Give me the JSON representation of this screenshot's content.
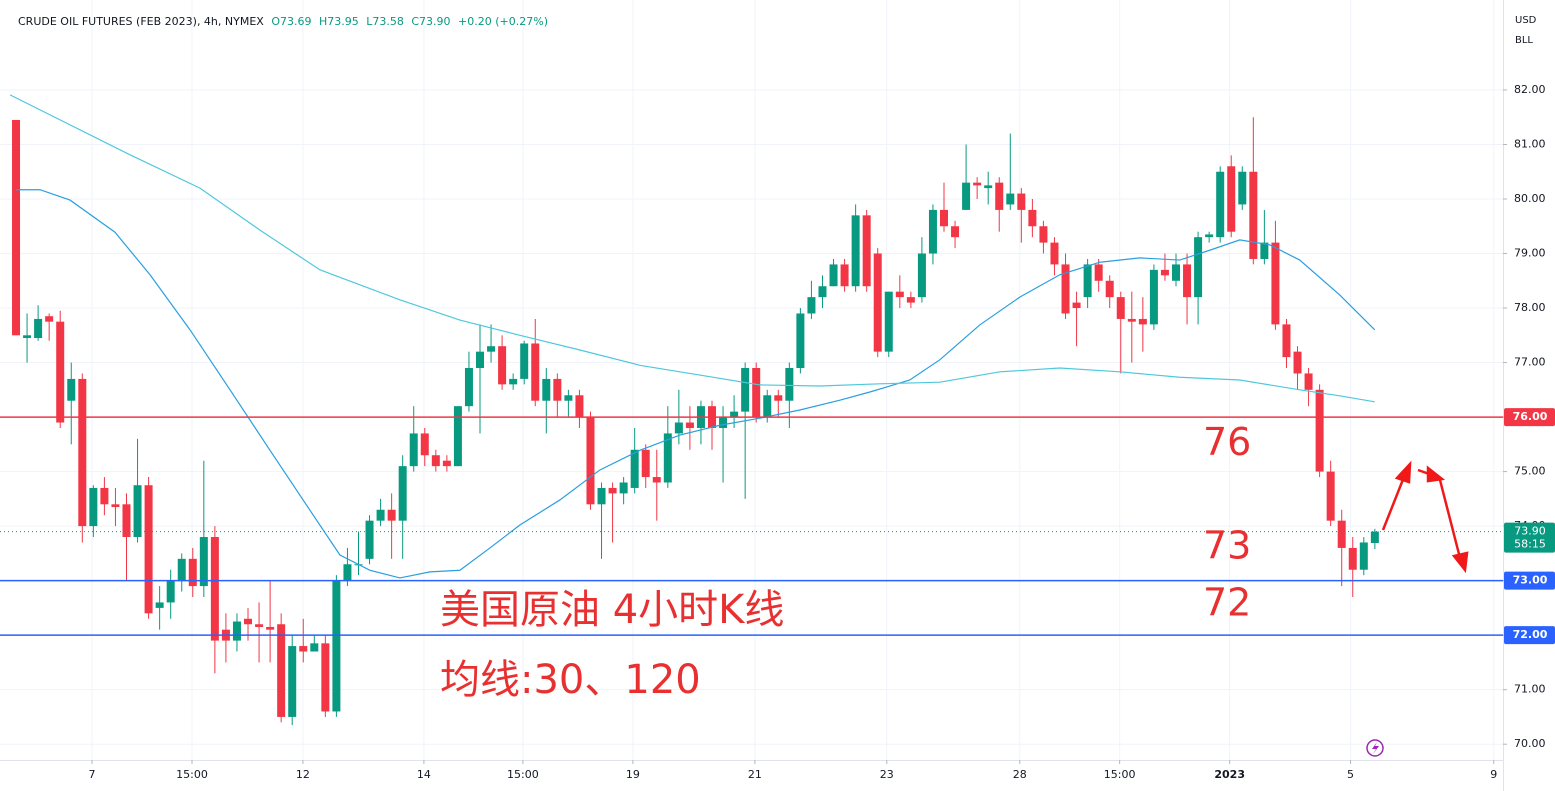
{
  "chart_data": {
    "type": "candlestick",
    "title": "CRUDE OIL FUTURES (FEB 2023), 4h, NYMEX",
    "ohlc_legend": [
      "O73.69",
      "H73.95",
      "L73.58",
      "C73.90",
      "+0.20 (+0.27%)"
    ],
    "currency": "USD",
    "unit": "BLL",
    "up_color": "#089981",
    "down_color": "#f23645",
    "xlim": [
      -1.45,
      134.6
    ],
    "ylim": [
      69.71,
      83.65
    ],
    "xticks": [
      {
        "value": 6.88,
        "label": "7"
      },
      {
        "value": 15.93,
        "label": "15:00"
      },
      {
        "value": 25.97,
        "label": "12"
      },
      {
        "value": 36.92,
        "label": "14"
      },
      {
        "value": 45.88,
        "label": "15:00"
      },
      {
        "value": 55.84,
        "label": "19"
      },
      {
        "value": 66.88,
        "label": "21"
      },
      {
        "value": 78.82,
        "label": "23"
      },
      {
        "value": 90.86,
        "label": "28"
      },
      {
        "value": 99.9,
        "label": "15:00"
      },
      {
        "value": 109.86,
        "label": "2023"
      },
      {
        "value": 120.8,
        "label": "5"
      },
      {
        "value": 133.76,
        "label": "9"
      }
    ],
    "yticks": [
      {
        "value": 70,
        "label": "70.00"
      },
      {
        "value": 71,
        "label": "71.00"
      },
      {
        "value": 72,
        "label": "72.00"
      },
      {
        "value": 73,
        "label": "73.00"
      },
      {
        "value": 74,
        "label": "74.00"
      },
      {
        "value": 75,
        "label": "75.00"
      },
      {
        "value": 76,
        "label": "76.00"
      },
      {
        "value": 77,
        "label": "77.00"
      },
      {
        "value": 78,
        "label": "78.00"
      },
      {
        "value": 79,
        "label": "79.00"
      },
      {
        "value": 80,
        "label": "80.00"
      },
      {
        "value": 81,
        "label": "81.00"
      },
      {
        "value": 82,
        "label": "82.00"
      }
    ],
    "open": [
      81.45,
      77.45,
      77.45,
      77.85,
      77.75,
      76.3,
      76.7,
      74.0,
      74.7,
      74.4,
      74.4,
      73.8,
      74.75,
      72.5,
      72.6,
      73.0,
      73.4,
      72.9,
      73.8,
      72.1,
      71.9,
      72.3,
      72.2,
      72.15,
      72.2,
      70.5,
      71.8,
      71.7,
      71.85,
      70.6,
      73.0,
      73.3,
      73.4,
      74.1,
      74.3,
      74.1,
      75.1,
      75.7,
      75.3,
      75.2,
      75.1,
      76.2,
      76.9,
      77.2,
      77.3,
      76.6,
      76.7,
      77.35,
      76.3,
      76.7,
      76.3,
      76.4,
      76.0,
      74.4,
      74.7,
      74.6,
      74.7,
      75.4,
      74.9,
      74.8,
      75.7,
      75.9,
      75.8,
      76.2,
      75.8,
      76.0,
      76.1,
      76.9,
      76.0,
      76.4,
      76.3,
      76.9,
      77.9,
      78.2,
      78.4,
      78.8,
      78.4,
      79.7,
      79.0,
      77.2,
      78.3,
      78.2,
      78.2,
      79.0,
      79.8,
      79.5,
      79.8,
      80.3,
      80.2,
      80.3,
      79.9,
      80.1,
      79.8,
      79.5,
      79.2,
      78.8,
      78.1,
      78.2,
      78.8,
      78.5,
      78.2,
      77.8,
      77.8,
      77.7,
      78.7,
      78.5,
      78.8,
      78.2,
      79.3,
      79.3,
      80.6,
      79.9,
      80.5,
      78.9,
      79.2,
      77.7,
      77.2,
      76.8,
      76.5,
      75.0,
      74.1,
      73.6,
      73.2,
      73.69
    ],
    "high": [
      81.45,
      77.9,
      78.05,
      77.9,
      77.95,
      77.0,
      76.8,
      74.75,
      74.9,
      74.7,
      74.6,
      75.6,
      74.9,
      72.9,
      73.2,
      73.5,
      73.6,
      75.2,
      74.0,
      72.4,
      72.4,
      72.5,
      72.6,
      73.0,
      72.4,
      72.0,
      72.3,
      72.0,
      72.0,
      73.1,
      73.6,
      73.9,
      74.2,
      74.5,
      74.6,
      75.3,
      76.2,
      75.8,
      75.4,
      75.3,
      76.2,
      77.2,
      77.7,
      77.7,
      77.5,
      76.8,
      77.4,
      77.8,
      76.9,
      76.8,
      76.5,
      76.5,
      76.1,
      74.8,
      74.8,
      74.9,
      75.8,
      75.5,
      75.4,
      76.2,
      76.5,
      76.2,
      76.3,
      76.3,
      76.2,
      76.4,
      77.0,
      77.0,
      76.5,
      76.5,
      77.0,
      78.0,
      78.5,
      78.6,
      78.9,
      78.9,
      79.9,
      79.8,
      79.1,
      78.3,
      78.6,
      78.3,
      79.3,
      79.9,
      80.3,
      79.6,
      81.0,
      80.4,
      80.5,
      80.4,
      81.2,
      80.2,
      80.0,
      79.6,
      79.3,
      79.0,
      78.3,
      78.9,
      78.9,
      78.6,
      78.3,
      78.3,
      78.2,
      78.8,
      79.0,
      79.0,
      79.0,
      79.4,
      79.4,
      80.6,
      80.8,
      80.6,
      81.5,
      79.8,
      79.6,
      77.8,
      77.3,
      76.9,
      76.6,
      75.2,
      74.3,
      73.8,
      73.8,
      73.95
    ],
    "low": [
      77.5,
      77.0,
      77.4,
      77.4,
      75.8,
      75.5,
      73.7,
      73.8,
      74.2,
      74.0,
      73.0,
      73.7,
      72.3,
      72.1,
      72.3,
      72.8,
      72.7,
      72.7,
      71.3,
      71.5,
      71.7,
      71.9,
      71.5,
      71.5,
      70.4,
      70.35,
      71.5,
      71.7,
      70.5,
      70.5,
      72.9,
      73.1,
      73.3,
      74.0,
      73.4,
      73.4,
      75.0,
      75.1,
      75.0,
      75.0,
      75.1,
      76.1,
      75.7,
      77.0,
      76.5,
      76.5,
      76.6,
      76.2,
      75.7,
      76.0,
      76.0,
      75.8,
      74.3,
      73.4,
      73.7,
      74.4,
      74.6,
      74.7,
      74.1,
      74.7,
      75.5,
      75.4,
      75.5,
      75.4,
      74.8,
      75.8,
      74.5,
      75.9,
      75.9,
      76.0,
      75.8,
      76.8,
      77.8,
      78.0,
      78.4,
      78.3,
      78.3,
      78.3,
      77.1,
      77.1,
      78.0,
      78.0,
      78.1,
      78.8,
      79.4,
      79.1,
      79.8,
      80.0,
      79.9,
      79.4,
      79.8,
      79.2,
      79.3,
      79.0,
      78.6,
      77.8,
      77.3,
      78.0,
      78.3,
      78.0,
      76.8,
      77.0,
      77.2,
      77.6,
      78.5,
      78.4,
      77.7,
      77.7,
      79.2,
      79.2,
      79.3,
      79.8,
      78.8,
      78.8,
      77.6,
      76.9,
      76.5,
      76.2,
      74.9,
      74.0,
      72.9,
      72.7,
      73.1,
      73.58
    ],
    "close": [
      77.5,
      77.5,
      77.8,
      77.75,
      75.9,
      76.7,
      74.0,
      74.7,
      74.4,
      74.35,
      73.8,
      74.75,
      72.4,
      72.6,
      73.0,
      73.4,
      72.9,
      73.8,
      71.9,
      71.9,
      72.25,
      72.2,
      72.15,
      72.1,
      70.5,
      71.8,
      71.7,
      71.85,
      70.6,
      73.0,
      73.3,
      73.3,
      74.1,
      74.3,
      74.1,
      75.1,
      75.7,
      75.3,
      75.1,
      75.1,
      76.2,
      76.9,
      77.2,
      77.3,
      76.6,
      76.7,
      77.35,
      76.3,
      76.7,
      76.3,
      76.4,
      76.0,
      74.4,
      74.7,
      74.6,
      74.8,
      75.4,
      74.9,
      74.8,
      75.7,
      75.9,
      75.8,
      76.2,
      75.8,
      76.0,
      76.1,
      76.9,
      76.0,
      76.4,
      76.3,
      76.9,
      77.9,
      78.2,
      78.4,
      78.8,
      78.4,
      79.7,
      78.4,
      77.2,
      78.3,
      78.2,
      78.1,
      79.0,
      79.8,
      79.5,
      79.3,
      80.3,
      80.25,
      80.25,
      79.8,
      80.1,
      79.8,
      79.5,
      79.2,
      78.8,
      77.9,
      78.0,
      78.8,
      78.5,
      78.2,
      77.8,
      77.75,
      77.7,
      78.7,
      78.6,
      78.8,
      78.2,
      79.3,
      79.35,
      80.5,
      79.4,
      80.5,
      78.9,
      79.2,
      77.7,
      77.1,
      76.8,
      76.5,
      75.0,
      74.1,
      73.6,
      73.2,
      73.7,
      73.9
    ],
    "series": [
      {
        "color": "#2a9fe0",
        "x": [
          0,
          2.17,
          4.89,
          8.96,
          12.13,
          15.75,
          19.37,
          22.99,
          26.61,
          29.32,
          32.04,
          34.75,
          37.47,
          40.18,
          42.9,
          45.61,
          49.23,
          52.85,
          56.47,
          60.09,
          63.71,
          67.33,
          70.95,
          74.57,
          77.29,
          80.9,
          83.62,
          87.24,
          90.86,
          94.48,
          98.1,
          101.72,
          105.34,
          108.05,
          110.77,
          113.48,
          116.2,
          119.82,
          122.99
        ],
        "values": [
          80.17,
          80.17,
          79.98,
          79.39,
          78.61,
          77.6,
          76.5,
          75.39,
          74.29,
          73.47,
          73.19,
          73.05,
          73.16,
          73.19,
          73.6,
          74.02,
          74.48,
          75.03,
          75.39,
          75.67,
          75.85,
          75.98,
          76.13,
          76.31,
          76.46,
          76.68,
          77.05,
          77.69,
          78.2,
          78.61,
          78.84,
          78.92,
          78.88,
          79.06,
          79.25,
          79.16,
          78.88,
          78.24,
          77.6
        ]
      },
      {
        "color": "#4fc8dc",
        "x": [
          -0.54,
          4.89,
          10.32,
          16.65,
          22.08,
          27.51,
          34.75,
          40.18,
          45.61,
          51.04,
          56.47,
          61.9,
          67.33,
          72.76,
          78.19,
          83.62,
          89.05,
          94.48,
          99.91,
          105.34,
          110.77,
          116.2,
          119.82,
          122.99
        ],
        "values": [
          81.91,
          81.36,
          80.81,
          80.2,
          79.43,
          78.7,
          78.15,
          77.78,
          77.5,
          77.23,
          76.95,
          76.77,
          76.59,
          76.57,
          76.61,
          76.64,
          76.83,
          76.9,
          76.83,
          76.73,
          76.68,
          76.5,
          76.39,
          76.28
        ]
      }
    ],
    "hlines": [
      {
        "value": 76,
        "label": "76.00",
        "color": "#f23645"
      },
      {
        "value": 73,
        "label": "73.00",
        "color": "#2962ff"
      },
      {
        "value": 72,
        "label": "72.00",
        "color": "#2962ff"
      }
    ],
    "last_price": {
      "value": 73.9,
      "label": "73.90",
      "countdown": "58:15",
      "color": "#089981"
    },
    "annotations": [
      {
        "text": "76",
        "value": 75.5
      },
      {
        "text": "73",
        "value": 73.6
      },
      {
        "text": "72",
        "value": 72.55
      }
    ],
    "caption": [
      "美国原油 4小时K线",
      "均线:30、120"
    ]
  }
}
